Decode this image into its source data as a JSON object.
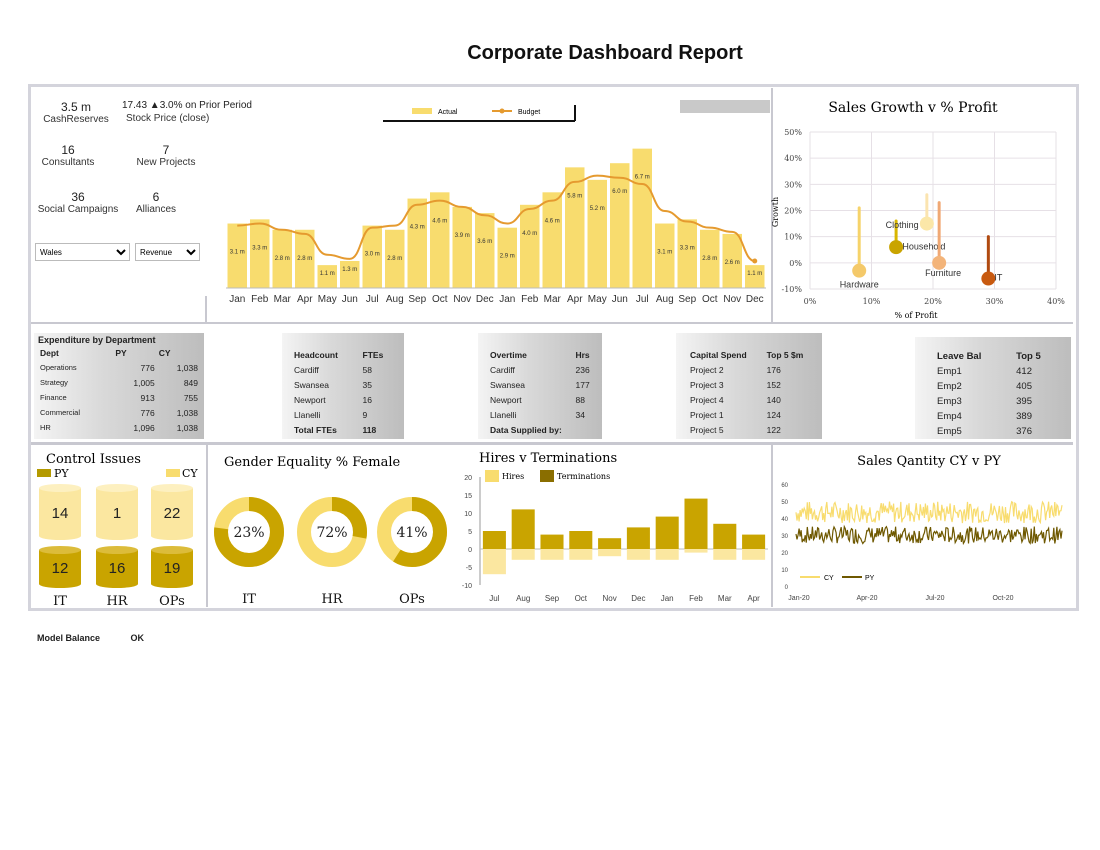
{
  "title": "Corporate Dashboard Report",
  "colors": {
    "gold_light": "#f8dc6e",
    "gold": "#d8b600",
    "gold_dark": "#b49a00",
    "olive": "#8a6e00",
    "orange": "#e59a2f",
    "dark_orange": "#c85a10"
  },
  "kpis": [
    {
      "value": "3.5 m",
      "label": "CashReserves"
    },
    {
      "value": "17.43 ▲3.0% on Prior Period",
      "label": "Stock Price (close)"
    },
    {
      "value": "16",
      "label": "Consultants"
    },
    {
      "value": "7",
      "label": "New Projects"
    },
    {
      "value": "36",
      "label": "Social Campaigns"
    },
    {
      "value": "6",
      "label": "Alliances"
    }
  ],
  "filters": {
    "region": "Wales",
    "metric": "Revenue"
  },
  "chart_data": [
    {
      "type": "bar",
      "name": "Actual v Budget",
      "legend": [
        "Actual",
        "Budget"
      ],
      "categories": [
        "Jan",
        "Feb",
        "Mar",
        "Apr",
        "May",
        "Jun",
        "Jul",
        "Aug",
        "Sep",
        "Oct",
        "Nov",
        "Dec",
        "Jan",
        "Feb",
        "Mar",
        "Apr",
        "May",
        "Jun",
        "Jul",
        "Aug",
        "Sep",
        "Oct",
        "Nov",
        "Dec"
      ],
      "actual": [
        3.1,
        3.3,
        2.8,
        2.8,
        1.1,
        1.3,
        3.0,
        2.8,
        4.3,
        4.6,
        3.9,
        3.6,
        2.9,
        4.0,
        4.6,
        5.8,
        5.2,
        6.0,
        6.7,
        3.1,
        3.3,
        2.8,
        2.6,
        1.1
      ],
      "labels": [
        "3.1 m",
        "3.3 m",
        "2.8 m",
        "2.8 m",
        "1.1 m",
        "1.3 m",
        "3.0 m",
        "2.8 m",
        "4.3 m",
        "4.6 m",
        "3.9 m",
        "3.6 m",
        "2.9 m",
        "4.0 m",
        "4.6 m",
        "5.8 m",
        "5.2 m",
        "6.0 m",
        "6.7 m",
        "3.1 m",
        "3.3 m",
        "2.8 m",
        "2.6 m",
        "1.1 m"
      ],
      "budget": [
        3.0,
        3.1,
        2.8,
        2.6,
        1.6,
        1.4,
        2.9,
        3.0,
        4.0,
        4.2,
        3.9,
        3.5,
        3.1,
        3.8,
        4.2,
        5.1,
        5.4,
        5.3,
        5.0,
        3.7,
        3.2,
        2.9,
        2.7,
        1.3
      ],
      "ylim": [
        0,
        7.5
      ]
    },
    {
      "type": "scatter",
      "title": "Sales Growth v % Profit",
      "xlabel": "% of Profit",
      "ylabel": "Growth",
      "xlim": [
        0,
        40
      ],
      "ylim": [
        -10,
        50
      ],
      "xticks": [
        "0%",
        "10%",
        "20%",
        "30%",
        "40%"
      ],
      "yticks": [
        "50%",
        "40%",
        "30%",
        "20%",
        "10%",
        "0%",
        "-10%"
      ],
      "points": [
        {
          "name": "Hardware",
          "x": 8,
          "y": -3,
          "stem_top": 21
        },
        {
          "name": "Clothing",
          "x": 14,
          "y": 6,
          "stem_top": 16
        },
        {
          "name": "Household",
          "x": 19,
          "y": 15,
          "stem_top": 26
        },
        {
          "name": "Furniture",
          "x": 21,
          "y": 0,
          "stem_top": 23
        },
        {
          "name": "IT",
          "x": 29,
          "y": -6,
          "stem_top": 10
        }
      ]
    },
    {
      "type": "bar",
      "title": "Hires v Terminations",
      "legend": [
        "Hires",
        "Terminations"
      ],
      "categories": [
        "Jul",
        "Aug",
        "Sep",
        "Oct",
        "Nov",
        "Dec",
        "Jan",
        "Feb",
        "Mar",
        "Apr"
      ],
      "hires": [
        5,
        11,
        4,
        5,
        3,
        6,
        9,
        14,
        7,
        4
      ],
      "terminations": [
        -7,
        -3,
        -3,
        -3,
        -2,
        -3,
        -3,
        -1,
        -3,
        -3
      ],
      "ylim": [
        -10,
        20
      ],
      "yticks": [
        "20",
        "15",
        "10",
        "5",
        "0",
        "-5",
        "-10"
      ]
    },
    {
      "type": "line",
      "title": "Sales Qantity CY v PY",
      "legend": [
        "CY",
        "PY"
      ],
      "xticks": [
        "Jan-20",
        "Apr-20",
        "Jul-20",
        "Oct-20"
      ],
      "yticks": [
        "60",
        "50",
        "40",
        "30",
        "20",
        "10",
        "0"
      ],
      "ylim": [
        0,
        60
      ],
      "cy_range": [
        37,
        50
      ],
      "py_range": [
        25,
        35
      ]
    },
    {
      "type": "pie",
      "title": "Gender Equality % Female",
      "slices": [
        {
          "name": "IT",
          "value": 23,
          "label": "23%"
        },
        {
          "name": "HR",
          "value": 72,
          "label": "72%"
        },
        {
          "name": "OPs",
          "value": 41,
          "label": "41%"
        }
      ]
    }
  ],
  "expenditure": {
    "title": "Expenditure by Department",
    "headers": [
      "Dept",
      "PY",
      "CY"
    ],
    "rows": [
      [
        "Operations",
        "776",
        "1,038"
      ],
      [
        "Strategy",
        "1,005",
        "849"
      ],
      [
        "Finance",
        "913",
        "755"
      ],
      [
        "Commercial",
        "776",
        "1,038"
      ],
      [
        "HR",
        "1,096",
        "1,038"
      ]
    ]
  },
  "headcount": {
    "headers": [
      "Headcount",
      "FTEs"
    ],
    "rows": [
      [
        "Cardiff",
        "58"
      ],
      [
        "Swansea",
        "35"
      ],
      [
        "Newport",
        "16"
      ],
      [
        "Llanelli",
        "9"
      ],
      [
        "Total FTEs",
        "118"
      ]
    ]
  },
  "overtime": {
    "headers": [
      "Overtime",
      "Hrs"
    ],
    "rows": [
      [
        "Cardiff",
        "236"
      ],
      [
        "Swansea",
        "177"
      ],
      [
        "Newport",
        "88"
      ],
      [
        "Llanelli",
        "34"
      ],
      [
        "Data Supplied by:",
        ""
      ]
    ]
  },
  "capital": {
    "headers": [
      "Capital Spend",
      "Top 5 $m"
    ],
    "rows": [
      [
        "Project 2",
        "176"
      ],
      [
        "Project 3",
        "152"
      ],
      [
        "Project 4",
        "140"
      ],
      [
        "Project 1",
        "124"
      ],
      [
        "Project 5",
        "122"
      ]
    ]
  },
  "leave": {
    "headers": [
      "Leave Bal",
      "Top 5"
    ],
    "rows": [
      [
        "Emp1",
        "412"
      ],
      [
        "Emp2",
        "405"
      ],
      [
        "Emp3",
        "395"
      ],
      [
        "Emp4",
        "389"
      ],
      [
        "Emp5",
        "376"
      ]
    ]
  },
  "control_issues": {
    "title": "Control Issues",
    "legend": [
      "PY",
      "CY"
    ],
    "groups": [
      {
        "name": "IT",
        "cy": "14",
        "py": "12"
      },
      {
        "name": "HR",
        "cy": "1",
        "py": "16"
      },
      {
        "name": "OPs",
        "cy": "22",
        "py": "19"
      }
    ]
  },
  "footer": {
    "label": "Model Balance",
    "value": "OK"
  }
}
